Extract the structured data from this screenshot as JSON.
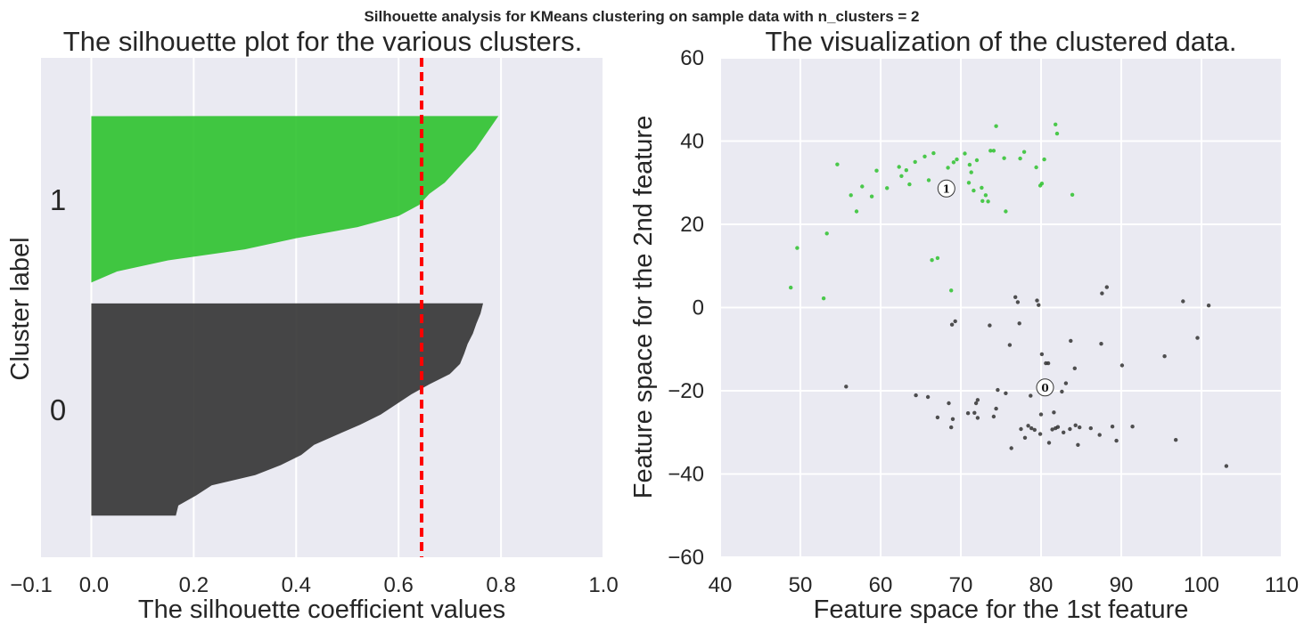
{
  "suptitle": "Silhouette analysis for KMeans clustering on sample data with n_clusters = 2",
  "colors": {
    "background": "#eaeaf2",
    "grid": "#ffffff",
    "cluster0": "#333333",
    "cluster1": "#2ec22e",
    "average_line": "#ff0000"
  },
  "chart_data": [
    {
      "type": "area",
      "title": "The silhouette plot for the various clusters.",
      "xlabel": "The silhouette coefficient values",
      "ylabel": "Cluster label",
      "xlim": [
        -0.1,
        1.0
      ],
      "ylim": [
        0,
        120
      ],
      "xticks": [
        -0.1,
        0.0,
        0.2,
        0.4,
        0.6,
        0.8,
        1.0
      ],
      "xtick_labels": [
        "−0.1",
        "0.0",
        "0.2",
        "0.4",
        "0.6",
        "0.8",
        "1.0"
      ],
      "grid": true,
      "average_silhouette": 0.645,
      "clusters": [
        {
          "label": "0",
          "color": "#333333",
          "y_range": [
            10,
            61
          ],
          "sorted_values": [
            0.165,
            0.17,
            0.205,
            0.235,
            0.32,
            0.37,
            0.41,
            0.435,
            0.48,
            0.525,
            0.565,
            0.595,
            0.625,
            0.66,
            0.7,
            0.72,
            0.728,
            0.735,
            0.745,
            0.752,
            0.76,
            0.765
          ]
        },
        {
          "label": "1",
          "color": "#2ec22e",
          "y_range": [
            66,
            106
          ],
          "sorted_values": [
            0.0,
            0.05,
            0.15,
            0.3,
            0.4,
            0.52,
            0.6,
            0.64,
            0.66,
            0.69,
            0.71,
            0.73,
            0.75,
            0.765,
            0.78,
            0.795
          ]
        }
      ]
    },
    {
      "type": "scatter",
      "title": "The visualization of the clustered data.",
      "xlabel": "Feature space for the 1st feature",
      "ylabel": "Feature space for the 2nd feature",
      "xlim": [
        40,
        110
      ],
      "ylim": [
        -60,
        60
      ],
      "xticks": [
        40,
        50,
        60,
        70,
        80,
        90,
        100,
        110
      ],
      "xtick_labels": [
        "40",
        "50",
        "60",
        "70",
        "80",
        "90",
        "100",
        "110"
      ],
      "yticks": [
        -60,
        -40,
        -20,
        0,
        20,
        40,
        60
      ],
      "ytick_labels": [
        "−60",
        "−40",
        "−20",
        "0",
        "20",
        "40",
        "60"
      ],
      "grid": true,
      "series": [
        {
          "color": "#2ec22e",
          "points": [
            [
              48.8,
              4.8
            ],
            [
              49.6,
              14.3
            ],
            [
              52.9,
              2.2
            ],
            [
              53.3,
              17.8
            ],
            [
              54.6,
              34.4
            ],
            [
              56.3,
              27.0
            ],
            [
              57.0,
              23.1
            ],
            [
              57.7,
              29.1
            ],
            [
              58.9,
              26.7
            ],
            [
              59.5,
              32.9
            ],
            [
              60.8,
              28.7
            ],
            [
              62.3,
              33.8
            ],
            [
              62.6,
              31.6
            ],
            [
              63.2,
              33.0
            ],
            [
              63.6,
              29.6
            ],
            [
              64.3,
              35.0
            ],
            [
              65.5,
              36.3
            ],
            [
              66.0,
              30.6
            ],
            [
              66.4,
              11.4
            ],
            [
              66.6,
              37.1
            ],
            [
              67.1,
              11.9
            ],
            [
              68.4,
              33.6
            ],
            [
              68.8,
              4.1
            ],
            [
              69.1,
              34.9
            ],
            [
              69.5,
              35.6
            ],
            [
              70.5,
              37.0
            ],
            [
              71.0,
              30.0
            ],
            [
              71.1,
              34.3
            ],
            [
              71.3,
              32.5
            ],
            [
              71.6,
              28.1
            ],
            [
              72.0,
              35.4
            ],
            [
              72.6,
              28.8
            ],
            [
              72.7,
              25.6
            ],
            [
              73.1,
              27.0
            ],
            [
              73.4,
              25.5
            ],
            [
              73.7,
              37.7
            ],
            [
              74.1,
              37.7
            ],
            [
              74.4,
              43.6
            ],
            [
              75.4,
              35.9
            ],
            [
              75.6,
              23.1
            ],
            [
              77.4,
              35.8
            ],
            [
              77.9,
              37.4
            ],
            [
              79.4,
              33.7
            ],
            [
              79.9,
              29.3
            ],
            [
              80.1,
              29.8
            ],
            [
              80.4,
              35.6
            ],
            [
              81.8,
              44.0
            ],
            [
              82.0,
              41.8
            ],
            [
              83.9,
              27.1
            ]
          ]
        },
        {
          "color": "#333333",
          "points": [
            [
              55.7,
              -19.0
            ],
            [
              64.4,
              -21.1
            ],
            [
              65.9,
              -21.5
            ],
            [
              67.1,
              -26.4
            ],
            [
              68.5,
              -23.0
            ],
            [
              68.8,
              -28.8
            ],
            [
              68.9,
              -4.1
            ],
            [
              69.0,
              -26.8
            ],
            [
              69.3,
              -3.3
            ],
            [
              70.9,
              -25.4
            ],
            [
              71.7,
              -25.3
            ],
            [
              71.9,
              -23.0
            ],
            [
              72.1,
              -22.2
            ],
            [
              72.1,
              -26.5
            ],
            [
              73.6,
              -4.3
            ],
            [
              74.1,
              -26.2
            ],
            [
              74.4,
              -24.3
            ],
            [
              74.6,
              -19.8
            ],
            [
              75.6,
              -20.6
            ],
            [
              76.1,
              -9.0
            ],
            [
              76.3,
              -33.8
            ],
            [
              76.8,
              2.5
            ],
            [
              77.1,
              1.3
            ],
            [
              77.3,
              -3.8
            ],
            [
              77.5,
              -29.2
            ],
            [
              78.0,
              -31.3
            ],
            [
              78.4,
              -28.4
            ],
            [
              78.7,
              -21.2
            ],
            [
              78.8,
              -29.0
            ],
            [
              79.2,
              -29.4
            ],
            [
              79.5,
              1.7
            ],
            [
              79.7,
              0.6
            ],
            [
              79.9,
              -30.4
            ],
            [
              80.0,
              -25.7
            ],
            [
              80.1,
              -11.2
            ],
            [
              80.6,
              -13.4
            ],
            [
              80.9,
              -13.4
            ],
            [
              81.0,
              -32.5
            ],
            [
              81.4,
              -29.3
            ],
            [
              81.6,
              -25.2
            ],
            [
              81.8,
              -29.0
            ],
            [
              82.1,
              -28.7
            ],
            [
              82.6,
              -20.2
            ],
            [
              82.8,
              -30.0
            ],
            [
              83.1,
              -18.2
            ],
            [
              83.6,
              -29.2
            ],
            [
              83.7,
              -8.0
            ],
            [
              84.2,
              -14.6
            ],
            [
              84.3,
              -28.3
            ],
            [
              84.6,
              -33.0
            ],
            [
              84.8,
              -28.8
            ],
            [
              86.2,
              -29.0
            ],
            [
              87.3,
              -30.6
            ],
            [
              87.5,
              -8.7
            ],
            [
              87.6,
              3.4
            ],
            [
              88.2,
              4.9
            ],
            [
              88.9,
              -28.6
            ],
            [
              89.4,
              -32.0
            ],
            [
              90.1,
              -13.9
            ],
            [
              91.4,
              -28.6
            ],
            [
              95.4,
              -11.7
            ],
            [
              96.8,
              -31.8
            ],
            [
              97.7,
              1.5
            ],
            [
              99.5,
              -7.3
            ],
            [
              100.9,
              0.5
            ],
            [
              103.1,
              -38.1
            ]
          ]
        }
      ],
      "centers": [
        {
          "label": "0",
          "x": 80.5,
          "y": -19.2
        },
        {
          "label": "1",
          "x": 68.2,
          "y": 28.6
        }
      ]
    }
  ]
}
